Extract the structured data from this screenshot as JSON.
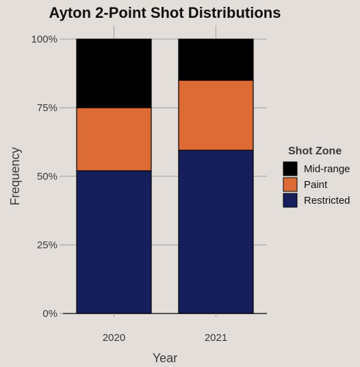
{
  "chart_data": {
    "type": "bar",
    "stacked": true,
    "title": "Ayton 2-Point Shot Distributions",
    "xlabel": "Year",
    "ylabel": "Frequency",
    "categories": [
      "2020",
      "2021"
    ],
    "ylim": [
      0,
      100
    ],
    "yticks": [
      "0%",
      "25%",
      "50%",
      "75%",
      "100%"
    ],
    "grid": true,
    "legend": {
      "title": "Shot Zone",
      "position": "right"
    },
    "series": [
      {
        "name": "Restricted",
        "color": "#161e5c",
        "values": [
          52,
          59.5
        ]
      },
      {
        "name": "Paint",
        "color": "#dc6b36",
        "values": [
          23,
          25.5
        ]
      },
      {
        "name": "Mid-range",
        "color": "#000000",
        "values": [
          25,
          15
        ]
      }
    ],
    "legend_order": [
      "Mid-range",
      "Paint",
      "Restricted"
    ]
  }
}
